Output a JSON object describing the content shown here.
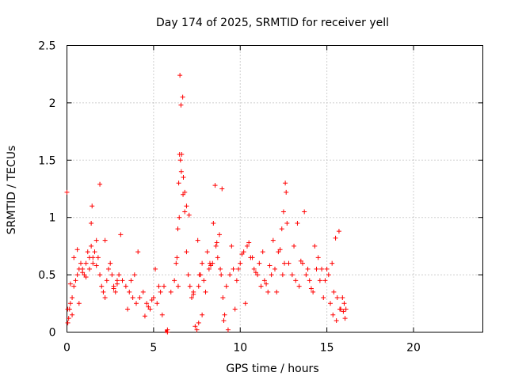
{
  "chart_data": {
    "type": "scatter",
    "title": "Day 174 of 2025, SRMTID for receiver yell",
    "xlabel": "GPS time / hours",
    "ylabel": "SRMTID / TECUs",
    "xlim": [
      0,
      24
    ],
    "ylim": [
      0,
      2.5
    ],
    "xticks": [
      0,
      5,
      10,
      15,
      20
    ],
    "yticks": [
      0,
      0.5,
      1,
      1.5,
      2,
      2.5
    ],
    "xtick_labels": [
      "0",
      "5",
      "10",
      "15",
      "20"
    ],
    "ytick_labels": [
      "0",
      "0.5",
      "1",
      "1.5",
      "2",
      "2.5"
    ],
    "grid": true,
    "marker": "+",
    "series": [
      {
        "name": "SRMTID",
        "color": "#ff0000",
        "x": [
          0.0,
          0.05,
          0.1,
          0.15,
          0.2,
          0.3,
          0.4,
          0.5,
          0.6,
          0.7,
          0.8,
          0.9,
          1.0,
          1.1,
          1.2,
          1.3,
          1.4,
          1.5,
          1.6,
          1.7,
          1.8,
          1.9,
          2.0,
          2.1,
          2.2,
          2.3,
          2.4,
          2.5,
          2.6,
          2.7,
          2.8,
          2.9,
          3.0,
          3.2,
          3.4,
          3.6,
          3.8,
          4.0,
          4.2,
          4.4,
          4.6,
          4.8,
          5.0,
          5.2,
          5.4,
          5.6,
          5.8,
          5.8,
          6.0,
          6.2,
          6.3,
          6.4,
          6.45,
          6.5,
          6.55,
          6.6,
          6.7,
          6.8,
          6.9,
          7.0,
          7.1,
          7.2,
          7.3,
          7.4,
          7.5,
          7.6,
          7.7,
          7.8,
          7.9,
          8.0,
          8.2,
          8.4,
          8.6,
          8.8,
          8.9,
          9.0,
          9.1,
          9.2,
          9.4,
          9.6,
          9.8,
          10.0,
          10.2,
          10.4,
          10.6,
          10.8,
          11.0,
          11.2,
          11.4,
          11.6,
          11.8,
          12.0,
          12.2,
          12.4,
          12.5,
          12.6,
          12.7,
          12.8,
          13.0,
          13.2,
          13.4,
          13.6,
          13.8,
          14.0,
          14.2,
          14.4,
          14.6,
          14.8,
          15.0,
          15.2,
          15.4,
          15.6,
          15.8,
          16.0,
          16.1,
          0.05,
          0.3,
          0.7,
          1.4,
          1.45,
          1.9,
          2.2,
          3.1,
          4.1,
          5.1,
          6.35,
          6.42,
          6.48,
          6.52,
          6.58,
          6.62,
          6.68,
          6.72,
          6.8,
          6.9,
          7.05,
          7.55,
          7.6,
          7.65,
          8.1,
          8.3,
          8.55,
          8.65,
          8.7,
          8.85,
          8.95,
          9.05,
          9.3,
          9.7,
          10.3,
          10.7,
          11.3,
          11.9,
          12.3,
          12.45,
          12.55,
          12.65,
          13.3,
          13.7,
          14.3,
          14.7,
          14.9,
          15.1,
          15.3,
          15.5,
          15.7,
          15.9,
          16.05,
          15.35,
          15.55,
          15.75,
          15.95,
          4.5,
          4.7,
          4.9,
          5.3,
          5.5,
          3.5,
          3.7,
          3.9,
          2.7,
          2.9,
          1.1,
          1.3,
          1.5,
          1.7,
          0.9,
          0.6,
          0.4,
          0.2,
          7.3,
          7.8,
          8.25,
          8.45,
          9.5,
          9.9,
          10.1,
          10.5,
          10.9,
          11.1,
          11.5,
          11.7,
          12.1,
          13.1,
          13.5,
          13.9,
          14.1,
          14.5
        ],
        "y": [
          1.22,
          0.08,
          0.12,
          0.2,
          0.25,
          0.3,
          0.4,
          0.45,
          0.5,
          0.55,
          0.6,
          0.55,
          0.5,
          0.6,
          0.7,
          0.65,
          0.75,
          0.6,
          0.7,
          0.8,
          0.65,
          0.5,
          0.4,
          0.35,
          0.3,
          0.45,
          0.55,
          0.6,
          0.5,
          0.4,
          0.35,
          0.45,
          0.5,
          0.45,
          0.4,
          0.35,
          0.3,
          0.25,
          0.3,
          0.35,
          0.25,
          0.2,
          0.3,
          0.25,
          0.35,
          0.4,
          0.0,
          0.02,
          0.35,
          0.45,
          0.6,
          0.9,
          1.3,
          1.55,
          1.5,
          1.4,
          1.2,
          1.05,
          0.7,
          0.5,
          0.4,
          0.3,
          0.35,
          0.05,
          0.02,
          0.4,
          0.5,
          0.6,
          0.45,
          0.35,
          0.55,
          0.6,
          0.75,
          0.85,
          0.5,
          0.3,
          0.15,
          0.4,
          0.5,
          0.55,
          0.45,
          0.6,
          0.7,
          0.75,
          0.65,
          0.55,
          0.5,
          0.4,
          0.45,
          0.35,
          0.5,
          0.55,
          0.7,
          0.9,
          1.05,
          1.3,
          0.95,
          0.6,
          0.5,
          0.45,
          0.4,
          0.6,
          0.5,
          0.45,
          0.35,
          0.55,
          0.45,
          0.3,
          0.55,
          0.25,
          0.35,
          0.3,
          0.2,
          0.25,
          0.2,
          0.2,
          0.15,
          0.25,
          0.95,
          1.1,
          1.29,
          0.8,
          0.85,
          0.7,
          0.55,
          0.65,
          0.4,
          1.0,
          2.24,
          1.98,
          1.55,
          2.05,
          1.35,
          1.22,
          1.1,
          1.02,
          0.8,
          0.08,
          0.5,
          0.7,
          0.58,
          1.28,
          0.78,
          0.65,
          0.55,
          1.25,
          0.1,
          0.02,
          0.2,
          0.25,
          0.65,
          0.7,
          0.8,
          0.72,
          0.5,
          0.6,
          1.22,
          0.95,
          1.05,
          0.75,
          0.55,
          0.45,
          0.5,
          0.6,
          0.82,
          0.88,
          0.3,
          0.12,
          0.15,
          0.1,
          0.2,
          0.18,
          0.14,
          0.22,
          0.28,
          0.4,
          0.15,
          0.2,
          0.45,
          0.5,
          0.38,
          0.42,
          0.48,
          0.55,
          0.65,
          0.58,
          0.52,
          0.72,
          0.65,
          0.42,
          0.33,
          0.15,
          0.6,
          0.95,
          0.75,
          0.55,
          0.68,
          0.78,
          0.52,
          0.6,
          0.42,
          0.58,
          0.35,
          0.75,
          0.62,
          0.55,
          0.38,
          0.65
        ],
        "filled_square_markers": [
          {
            "x": 5.75,
            "y": 0.0
          }
        ]
      }
    ]
  }
}
